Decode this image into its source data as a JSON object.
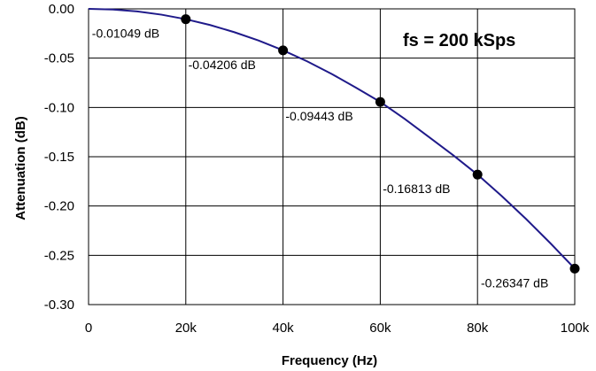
{
  "chart_data": {
    "type": "line",
    "title": "",
    "annotation": "fs = 200 kSps",
    "xlabel": "Frequency (Hz)",
    "ylabel": "Attenuation (dB)",
    "xlim": [
      0,
      100000
    ],
    "ylim": [
      -0.3,
      0.0
    ],
    "x_ticks": [
      0,
      20000,
      40000,
      60000,
      80000,
      100000
    ],
    "x_tick_labels": [
      "0",
      "20k",
      "40k",
      "60k",
      "80k",
      "100k"
    ],
    "y_ticks": [
      0.0,
      -0.05,
      -0.1,
      -0.15,
      -0.2,
      -0.25,
      -0.3
    ],
    "y_tick_labels": [
      "0.00",
      "-0.05",
      "-0.10",
      "-0.15",
      "-0.20",
      "-0.25",
      "-0.30"
    ],
    "grid": true,
    "legend": "none",
    "line_color": "#1f1a8a",
    "series": [
      {
        "x": [
          0,
          5000,
          10000,
          15000,
          20000,
          25000,
          30000,
          35000,
          40000,
          45000,
          50000,
          55000,
          60000,
          65000,
          70000,
          75000,
          80000,
          85000,
          90000,
          95000,
          100000
        ],
        "values": [
          0.0,
          -0.00065,
          -0.0026,
          -0.0059,
          -0.01049,
          -0.0164,
          -0.0237,
          -0.0322,
          -0.04206,
          -0.0533,
          -0.066,
          -0.0799,
          -0.09443,
          -0.1115,
          -0.13,
          -0.1485,
          -0.16813,
          -0.19,
          -0.2132,
          -0.2378,
          -0.26347
        ]
      }
    ],
    "markers": [
      {
        "x": 20000,
        "y": -0.01049,
        "label": "-0.01049 dB"
      },
      {
        "x": 40000,
        "y": -0.04206,
        "label": "-0.04206 dB"
      },
      {
        "x": 60000,
        "y": -0.09443,
        "label": "-0.09443 dB"
      },
      {
        "x": 80000,
        "y": -0.16813,
        "label": "-0.16813 dB"
      },
      {
        "x": 100000,
        "y": -0.26347,
        "label": "-0.26347 dB"
      }
    ]
  }
}
